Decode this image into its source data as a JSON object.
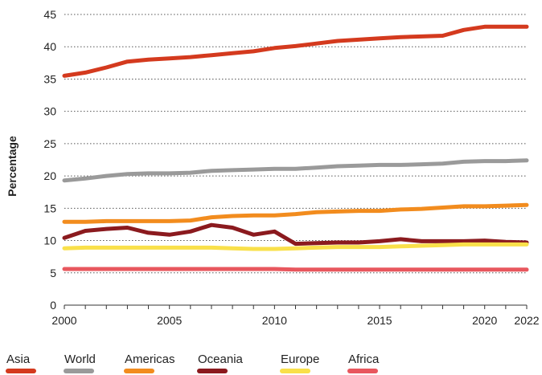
{
  "chart_data": {
    "type": "line",
    "title": "",
    "xlabel": "",
    "ylabel": "Percentage",
    "xlim": [
      2000,
      2022
    ],
    "ylim": [
      0,
      45
    ],
    "yticks": [
      "0",
      "5",
      "10",
      "15",
      "20",
      "25",
      "30",
      "35",
      "40",
      "45"
    ],
    "xticks": [
      "2000",
      "2005",
      "2010",
      "2015",
      "2020",
      "2022"
    ],
    "grid": "horizontal-dotted",
    "legend_position": "bottom",
    "x": [
      2000,
      2001,
      2002,
      2003,
      2004,
      2005,
      2006,
      2007,
      2008,
      2009,
      2010,
      2011,
      2012,
      2013,
      2014,
      2015,
      2016,
      2017,
      2018,
      2019,
      2020,
      2021,
      2022
    ],
    "series": [
      {
        "name": "Asia",
        "color": "#d43a1e",
        "values": [
          35.5,
          36.0,
          36.8,
          37.7,
          38.0,
          38.2,
          38.4,
          38.7,
          39.0,
          39.3,
          39.8,
          40.1,
          40.5,
          40.9,
          41.1,
          41.3,
          41.5,
          41.6,
          41.7,
          42.6,
          43.1,
          43.1,
          43.1
        ]
      },
      {
        "name": "World",
        "color": "#9a9a9a",
        "values": [
          19.3,
          19.6,
          20.0,
          20.3,
          20.4,
          20.4,
          20.5,
          20.8,
          20.9,
          21.0,
          21.1,
          21.1,
          21.3,
          21.5,
          21.6,
          21.7,
          21.7,
          21.8,
          21.9,
          22.2,
          22.3,
          22.3,
          22.4
        ]
      },
      {
        "name": "Americas",
        "color": "#f28c1e",
        "values": [
          12.9,
          12.9,
          13.0,
          13.0,
          13.0,
          13.0,
          13.1,
          13.6,
          13.8,
          13.9,
          13.9,
          14.1,
          14.4,
          14.5,
          14.6,
          14.6,
          14.8,
          14.9,
          15.1,
          15.3,
          15.3,
          15.4,
          15.5
        ]
      },
      {
        "name": "Oceania",
        "color": "#8b1a1e",
        "values": [
          10.4,
          11.5,
          11.8,
          12.0,
          11.2,
          10.9,
          11.4,
          12.4,
          12.0,
          10.9,
          11.4,
          9.5,
          9.6,
          9.7,
          9.7,
          9.9,
          10.2,
          9.9,
          9.9,
          9.9,
          10.0,
          9.8,
          9.7
        ]
      },
      {
        "name": "Europe",
        "color": "#f9e04a",
        "values": [
          8.8,
          8.9,
          8.9,
          8.9,
          8.9,
          8.9,
          8.9,
          8.9,
          8.8,
          8.7,
          8.7,
          8.8,
          8.9,
          9.0,
          9.0,
          9.0,
          9.1,
          9.2,
          9.3,
          9.4,
          9.4,
          9.4,
          9.4
        ]
      },
      {
        "name": "Africa",
        "color": "#e8575e",
        "values": [
          5.6,
          5.6,
          5.6,
          5.6,
          5.6,
          5.6,
          5.6,
          5.6,
          5.6,
          5.6,
          5.6,
          5.5,
          5.5,
          5.5,
          5.5,
          5.5,
          5.5,
          5.5,
          5.5,
          5.5,
          5.5,
          5.5,
          5.5
        ]
      }
    ]
  }
}
